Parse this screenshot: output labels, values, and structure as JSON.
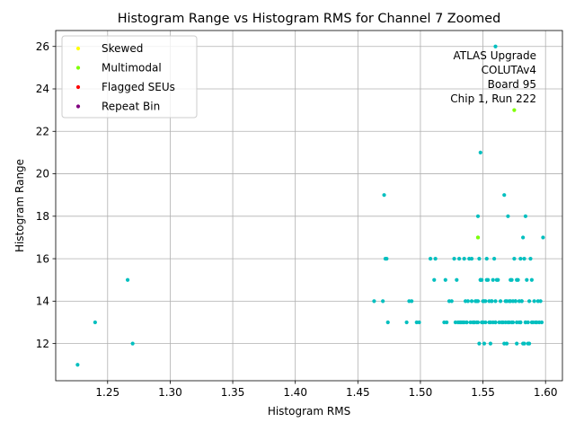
{
  "chart_data": {
    "type": "scatter",
    "title": "Histogram Range vs Histogram RMS for Channel 7 Zoomed",
    "xlabel": "Histogram RMS",
    "ylabel": "Histogram Range",
    "xlim": [
      1.2085,
      1.6135
    ],
    "ylim": [
      10.25,
      26.75
    ],
    "xticks": [
      "1.25",
      "1.30",
      "1.35",
      "1.40",
      "1.45",
      "1.50",
      "1.55",
      "1.60"
    ],
    "xtick_values": [
      1.25,
      1.3,
      1.35,
      1.4,
      1.45,
      1.5,
      1.55,
      1.6
    ],
    "yticks": [
      "12",
      "14",
      "16",
      "18",
      "20",
      "22",
      "24",
      "26"
    ],
    "ytick_values": [
      12,
      14,
      16,
      18,
      20,
      22,
      24,
      26
    ],
    "grid": true,
    "legend_position": "top-left",
    "legend": [
      {
        "label": "Skewed",
        "color": "#ffff00"
      },
      {
        "label": "Multimodal",
        "color": "#7fff00"
      },
      {
        "label": "Flagged SEUs",
        "color": "#ff0000"
      },
      {
        "label": "Repeat Bin",
        "color": "#800080"
      }
    ],
    "annotation": [
      "ATLAS Upgrade",
      "COLUTAv4",
      "Board 95",
      "Chip 1, Run 222"
    ],
    "series": [
      {
        "color": "#00bfbf",
        "x": [
          1.226,
          1.24,
          1.266,
          1.27,
          1.463,
          1.47,
          1.471,
          1.472,
          1.473,
          1.474,
          1.489,
          1.491,
          1.493,
          1.497,
          1.499,
          1.508,
          1.511,
          1.512,
          1.519,
          1.52,
          1.521,
          1.523,
          1.525,
          1.527,
          1.528,
          1.529,
          1.53,
          1.531,
          1.532,
          1.533,
          1.534,
          1.535,
          1.536,
          1.537,
          1.538,
          1.539,
          1.54,
          1.541,
          1.541,
          1.542,
          1.543,
          1.544,
          1.545,
          1.546,
          1.546,
          1.547,
          1.548,
          1.549,
          1.55,
          1.55,
          1.551,
          1.552,
          1.553,
          1.554,
          1.555,
          1.556,
          1.557,
          1.558,
          1.559,
          1.56,
          1.56,
          1.561,
          1.562,
          1.563,
          1.564,
          1.566,
          1.567,
          1.568,
          1.569,
          1.57,
          1.571,
          1.572,
          1.573,
          1.574,
          1.575,
          1.576,
          1.577,
          1.578,
          1.579,
          1.58,
          1.58,
          1.581,
          1.582,
          1.583,
          1.584,
          1.584,
          1.585,
          1.586,
          1.587,
          1.588,
          1.589,
          1.59,
          1.591,
          1.592,
          1.593,
          1.594,
          1.595,
          1.596,
          1.597,
          1.598,
          1.547,
          1.551,
          1.556,
          1.567,
          1.583,
          1.586,
          1.537,
          1.545,
          1.555,
          1.56,
          1.57,
          1.576,
          1.548,
          1.553,
          1.558,
          1.572,
          1.577,
          1.589,
          1.531,
          1.543,
          1.546,
          1.552,
          1.557,
          1.568,
          1.574,
          1.581,
          1.546,
          1.569,
          1.577,
          1.582,
          1.587,
          1.535,
          1.549,
          1.565,
          1.573,
          1.579,
          1.584,
          1.548,
          1.55,
          1.56,
          1.571,
          1.58
        ],
        "y": [
          11,
          13,
          15,
          12,
          14,
          14,
          19,
          16,
          16,
          13,
          13,
          14,
          14,
          13,
          13,
          16,
          15,
          16,
          13,
          15,
          13,
          14,
          14,
          16,
          13,
          15,
          13,
          16,
          13,
          13,
          13,
          16,
          14,
          13,
          14,
          16,
          13,
          14,
          16,
          13,
          13,
          14,
          13,
          13,
          18,
          16,
          15,
          15,
          13,
          14,
          14,
          13,
          16,
          15,
          13,
          13,
          14,
          13,
          16,
          14,
          13,
          15,
          15,
          13,
          14,
          13,
          19,
          13,
          14,
          18,
          13,
          14,
          15,
          13,
          16,
          14,
          13,
          15,
          14,
          13,
          16,
          14,
          17,
          16,
          13,
          18,
          15,
          13,
          14,
          16,
          13,
          13,
          14,
          13,
          13,
          14,
          13,
          14,
          13,
          17,
          12,
          12,
          12,
          12,
          12,
          12,
          13,
          14,
          14,
          13,
          13,
          14,
          15,
          15,
          15,
          15,
          15,
          15,
          13,
          13,
          14,
          14,
          14,
          14,
          14,
          14,
          17,
          12,
          12,
          12,
          12,
          13,
          13,
          13,
          13,
          13,
          13,
          21,
          13,
          26,
          14,
          13
        ]
      },
      {
        "color": "#7fff00",
        "x": [
          1.546,
          1.575
        ],
        "y": [
          17,
          23
        ]
      }
    ]
  }
}
